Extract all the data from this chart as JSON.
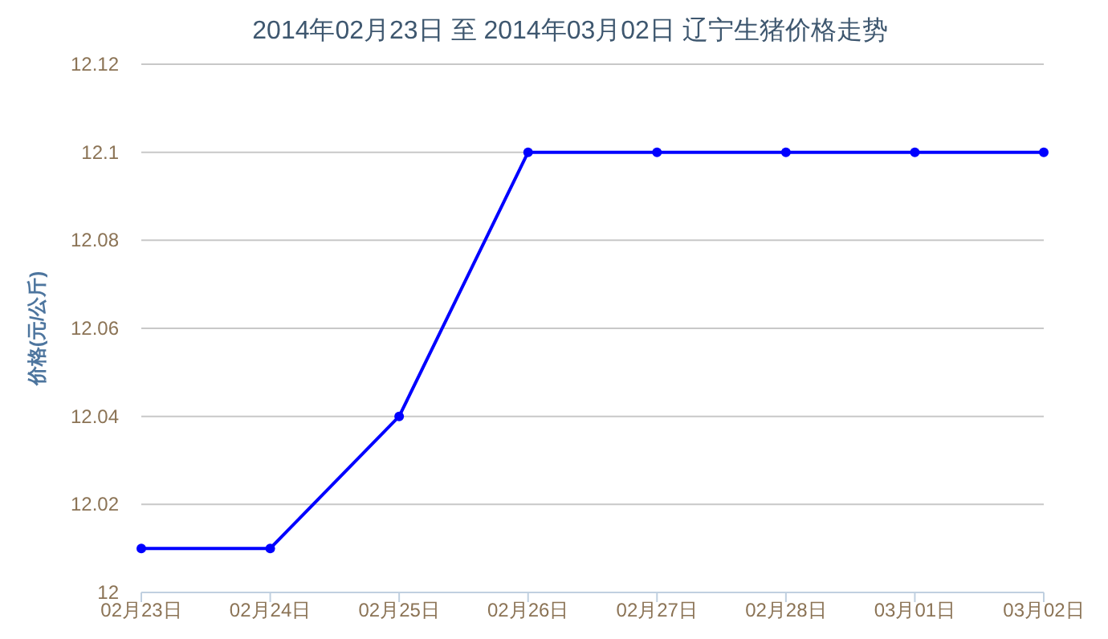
{
  "chart_data": {
    "type": "line",
    "title": "2014年02月23日 至 2014年03月02日 辽宁生猪价格走势",
    "ylabel": "价格(元/公斤)",
    "categories": [
      "02月23日",
      "02月24日",
      "02月25日",
      "02月26日",
      "02月27日",
      "02月28日",
      "03月01日",
      "03月02日"
    ],
    "series": [
      {
        "color": "#0000ff",
        "values": [
          12.01,
          12.01,
          12.04,
          12.1,
          12.1,
          12.1,
          12.1,
          12.1
        ]
      }
    ],
    "ylim": [
      12,
      12.12
    ],
    "yticks": [
      12,
      12.02,
      12.04,
      12.06,
      12.08,
      12.1,
      12.12
    ],
    "grid": "y",
    "marker": "circle",
    "line_style": "solid"
  }
}
